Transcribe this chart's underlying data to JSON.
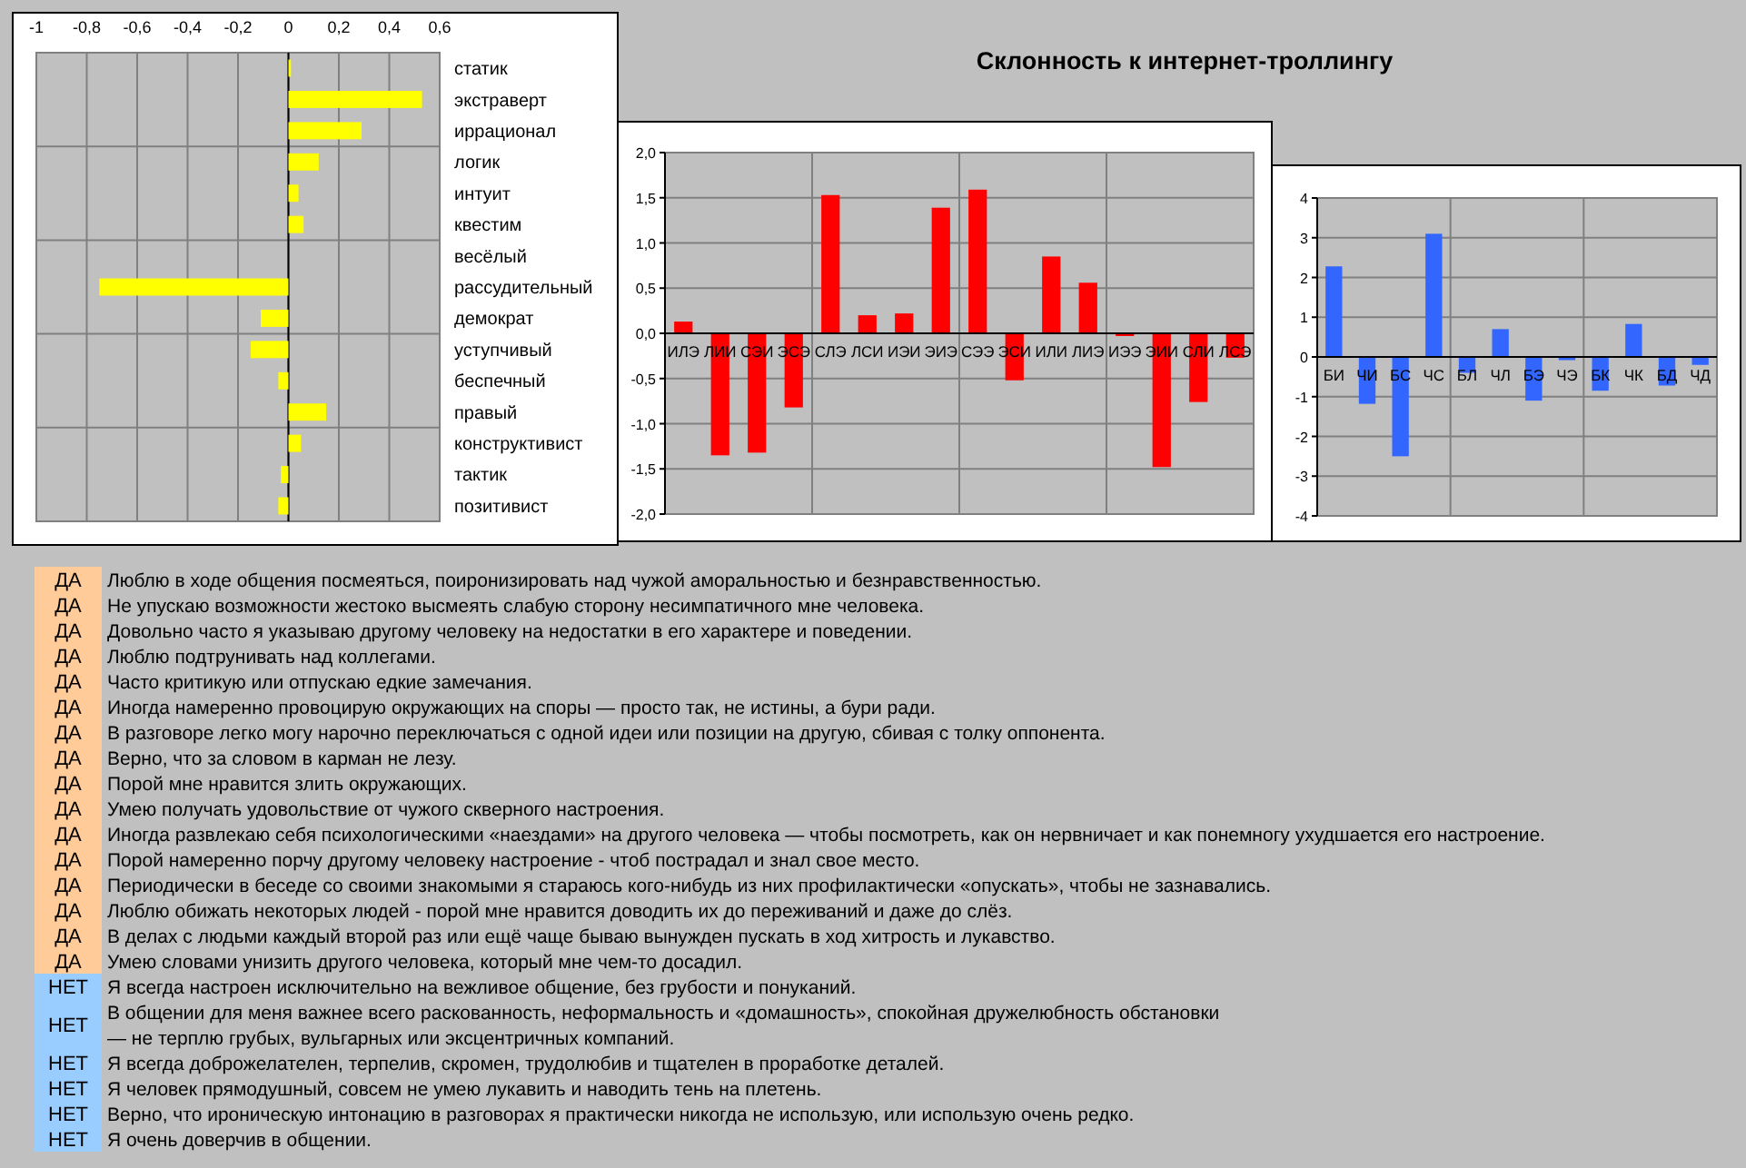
{
  "chart_data": [
    {
      "type": "bar",
      "orientation": "horizontal",
      "color": "#ffff00",
      "grid": "x",
      "categories": [
        "статик",
        "экстраверт",
        "иррационал",
        "логик",
        "интуит",
        "квестим",
        "весёлый",
        "рассудительный",
        "демократ",
        "уступчивый",
        "беспечный",
        "правый",
        "конструктивист",
        "тактик",
        "позитивист"
      ],
      "values": [
        0.01,
        0.53,
        0.29,
        0.12,
        0.04,
        0.06,
        0,
        -0.75,
        -0.11,
        -0.15,
        -0.04,
        0.15,
        0.05,
        -0.03,
        -0.04
      ],
      "xlim": [
        -1,
        0.6
      ],
      "xticks": [
        -1,
        {
          "value": -0.8,
          "label": "-0,8"
        },
        {
          "value": -0.6,
          "label": "-0,6"
        },
        {
          "value": -0.4,
          "label": "-0,4"
        },
        {
          "value": -0.2,
          "label": "-0,2"
        },
        0,
        {
          "value": 0.2,
          "label": "0,2"
        },
        {
          "value": 0.4,
          "label": "0,4"
        },
        {
          "value": 0.6,
          "label": "0,6"
        }
      ]
    },
    {
      "type": "bar",
      "title": "Склонность к интернет-троллингу",
      "color": "#ff0000",
      "grid": "y",
      "categories": [
        "ИЛЭ",
        "ЛИИ",
        "СЭИ",
        "ЭСЭ",
        "СЛЭ",
        "ЛСИ",
        "ИЭИ",
        "ЭИЭ",
        "СЭЭ",
        "ЭСИ",
        "ИЛИ",
        "ЛИЭ",
        "ИЭЭ",
        "ЭИИ",
        "СЛИ",
        "ЛСЭ"
      ],
      "values": [
        0.13,
        -1.35,
        -1.32,
        -0.82,
        1.53,
        0.2,
        0.22,
        1.39,
        1.59,
        -0.52,
        0.85,
        0.56,
        -0.03,
        -1.48,
        -0.76,
        -0.27
      ],
      "ylim": [
        -2,
        2
      ],
      "yticks": [
        {
          "value": -2,
          "label": "-2,0"
        },
        {
          "value": -1.5,
          "label": "-1,5"
        },
        {
          "value": -1,
          "label": "-1,0"
        },
        {
          "value": -0.5,
          "label": "-0,5"
        },
        {
          "value": 0,
          "label": "0,0"
        },
        {
          "value": 0.5,
          "label": "0,5"
        },
        {
          "value": 1,
          "label": "1,0"
        },
        {
          "value": 1.5,
          "label": "1,5"
        },
        {
          "value": 2,
          "label": "2,0"
        }
      ]
    },
    {
      "type": "bar",
      "color": "#3366ff",
      "grid": "y",
      "categories": [
        "БИ",
        "ЧИ",
        "БС",
        "ЧС",
        "БЛ",
        "ЧЛ",
        "БЭ",
        "ЧЭ",
        "БК",
        "ЧК",
        "БД",
        "ЧД"
      ],
      "values": [
        2.28,
        -1.18,
        -2.5,
        3.1,
        -0.4,
        0.7,
        -1.1,
        -0.08,
        -0.85,
        0.83,
        -0.72,
        -0.2
      ],
      "ylim": [
        -4,
        4
      ],
      "yticks": [
        -4,
        -3,
        -2,
        -1,
        0,
        1,
        2,
        3,
        4
      ]
    },
    {
      "type": "other",
      "colors": [
        "#ffcc99",
        "#ffcc99",
        "#ffcc99",
        "#ffcc99",
        "#ffcc99",
        "#ffcc99",
        "#ffcc99",
        "#ffcc99",
        "#ffcc99",
        "#ffcc99",
        "#ffcc99",
        "#ffcc99",
        "#ffcc99",
        "#ffcc99",
        "#ffcc99",
        "#ffcc99",
        "#99ccff",
        "#99ccff",
        "#99ccff",
        "#99ccff",
        "#99ccff",
        "#99ccff"
      ],
      "annotations": [
        "ДА",
        "Люблю в ходе общения посмеяться, поиронизировать над чужой аморальностью и безнравственностью.",
        "ДА",
        "Не упускаю возможности жестоко высмеять слабую сторону несимпатичного мне человека.",
        "ДА",
        "Довольно часто я указываю другому человеку на недостатки в его характере и поведении.",
        "ДА",
        "Люблю подтрунивать над коллегами.",
        "ДА",
        "Часто критикую или отпускаю едкие замечания.",
        "ДА",
        "Иногда намеренно провоцирую окружающих на споры — просто так, не истины, а бури ради.",
        "ДА",
        "В разговоре легко могу нарочно переключаться с одной идеи или позиции на другую, сбивая с толку оппонента.",
        "ДА",
        "Верно, что за словом в карман не лезу.",
        "ДА",
        "Порой мне нравится злить окружающих.",
        "ДА",
        "Умею получать удовольствие от чужого скверного настроения.",
        "ДА",
        "Иногда развлекаю себя психологическими «наездами» на другого человека — чтобы посмотреть, как он нервничает и как понемногу ухудшается его настроение.",
        "ДА",
        "Порой намеренно порчу другому человеку настроение - чтоб пострадал и знал свое место.",
        "ДА",
        "Периодически в беседе со своими знакомыми я стараюсь кого-нибудь из них профилактически «опускать», чтобы не зазнавались.",
        "ДА",
        "Люблю обижать некоторых людей - порой мне нравится доводить их до переживаний и даже до слёз.",
        "ДА",
        "В делах с людьми каждый второй раз или ещё чаще бываю вынужден пускать в ход хитрость и лукавство.",
        "ДА",
        "Умею словами унизить другого человека, который мне чем-то досадил.",
        "НЕТ",
        "Я всегда настроен исключительно на вежливое общение, без грубости и понуканий.",
        "НЕТ",
        "В общении для меня важнее всего раскованность, неформальность и «домашность», спокойная дружелюбность обстановки\n— не терплю грубых, вульгарных или эксцентричных компаний.",
        "НЕТ",
        "Я всегда доброжелателен, терпелив, скромен, трудолюбив и тщателен в проработке деталей.",
        "НЕТ",
        "Я человек прямодушный, совсем не умею лукавить и наводить тень на плетень.",
        "НЕТ",
        "Верно, что ироническую интонацию в разговорах я практически никогда не использую, или использую очень редко.",
        "НЕТ",
        "Я очень доверчив в общении."
      ]
    }
  ]
}
